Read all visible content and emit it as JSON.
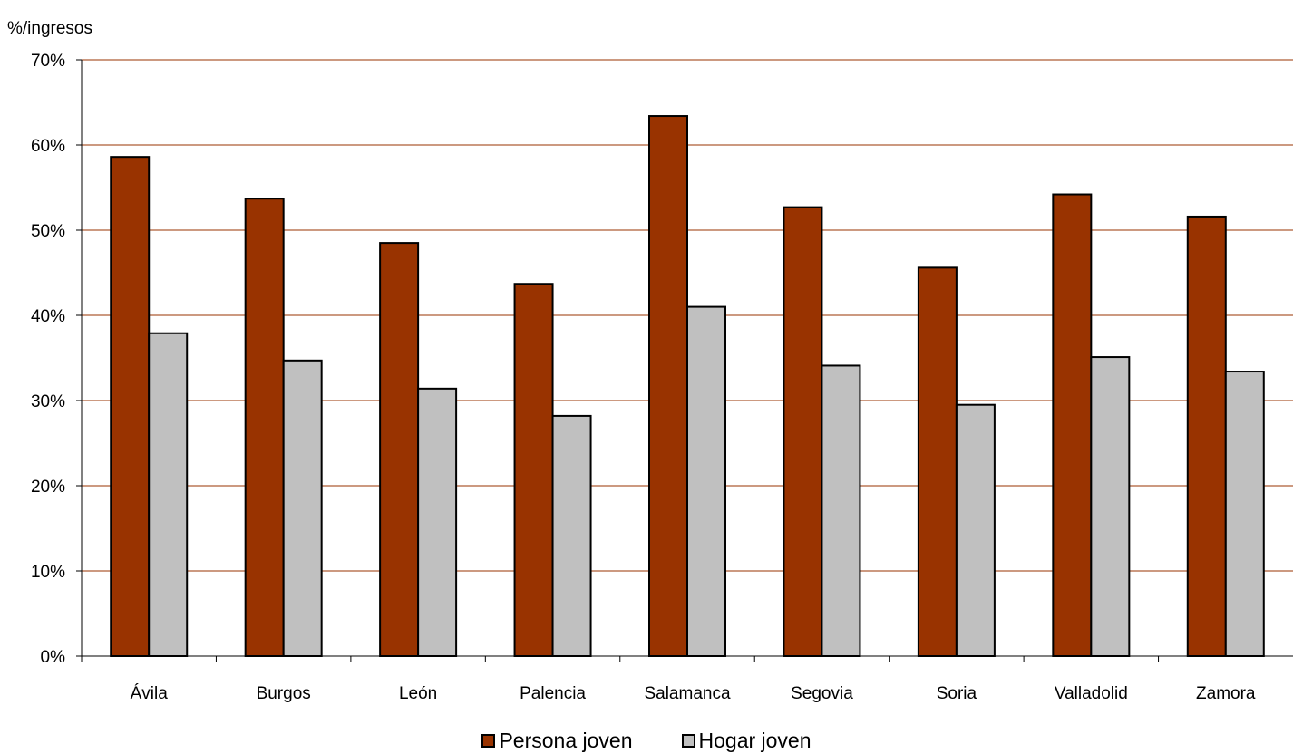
{
  "chart_data": {
    "type": "bar",
    "title": "",
    "ylabel": "%/ingresos",
    "xlabel": "",
    "ylim": [
      0,
      70
    ],
    "yticks": [
      0,
      10,
      20,
      30,
      40,
      50,
      60,
      70
    ],
    "ytick_labels": [
      "0%",
      "10%",
      "20%",
      "30%",
      "40%",
      "50%",
      "60%",
      "70%"
    ],
    "grid": true,
    "legend_position": "bottom",
    "categories": [
      "Ávila",
      "Burgos",
      "León",
      "Palencia",
      "Salamanca",
      "Segovia",
      "Soria",
      "Valladolid",
      "Zamora"
    ],
    "series": [
      {
        "name": "Persona joven",
        "color": "#993300",
        "values": [
          58.6,
          53.7,
          48.5,
          43.7,
          63.4,
          52.7,
          45.6,
          54.2,
          51.6
        ]
      },
      {
        "name": "Hogar joven",
        "color": "#C0C0C0",
        "values": [
          37.9,
          34.7,
          31.4,
          28.2,
          41.0,
          34.1,
          29.5,
          35.1,
          33.4
        ]
      }
    ],
    "gridline_color": "#993300"
  }
}
